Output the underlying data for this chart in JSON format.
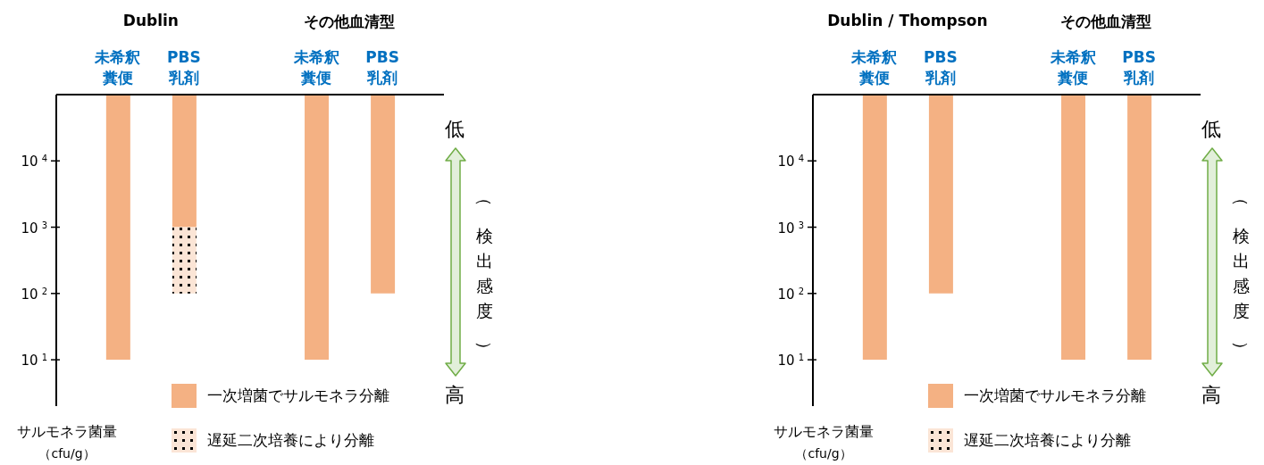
{
  "chart_data": [
    {
      "type": "bar",
      "categories": [
        "未希釈糞便",
        "PBS乳剤",
        "未希釈糞便",
        "PBS乳剤"
      ],
      "ylabel": "サルモネラ菌量（cfu/g）",
      "log": "y",
      "ylim": [
        2,
        100000
      ],
      "yticks": [
        {
          "value": 10,
          "label": "10$^{1}$"
        },
        {
          "value": 100,
          "label": "10$^{2}$"
        },
        {
          "value": 1000,
          "label": "10$^{3}$"
        },
        {
          "value": 10000,
          "label": "10$^{4}$"
        }
      ],
      "grid": false,
      "legend": "bottom right",
      "series": [
        {
          "name": "一次増菌でサルモネラ分離",
          "color": "#f4b183",
          "base": [
            10,
            1000,
            10,
            100
          ],
          "values": [
            99990,
            99000,
            99990,
            99900
          ]
        },
        {
          "name": "遅延二次培養により分離",
          "color": "#fbe5d6",
          "base": [
            null,
            100,
            null,
            null
          ],
          "values": [
            null,
            900,
            null,
            null
          ]
        }
      ],
      "annotations": [
        "Dublin",
        "その他血清型",
        "低",
        "高",
        "（検出感度）"
      ]
    },
    {
      "type": "bar",
      "categories": [
        "未希釈糞便",
        "PBS乳剤",
        "未希釈糞便",
        "PBS乳剤"
      ],
      "ylabel": "サルモネラ菌量（cfu/g）",
      "log": "y",
      "ylim": [
        2,
        100000
      ],
      "yticks": [
        {
          "value": 10,
          "label": "10$^{1}$"
        },
        {
          "value": 100,
          "label": "10$^{2}$"
        },
        {
          "value": 1000,
          "label": "10$^{3}$"
        },
        {
          "value": 10000,
          "label": "10$^{4}$"
        }
      ],
      "grid": false,
      "legend": "bottom right",
      "series": [
        {
          "name": "一次増菌でサルモネラ分離",
          "color": "#f4b183",
          "base": [
            10,
            100,
            10,
            10
          ],
          "values": [
            99990,
            99900,
            99990,
            99990
          ]
        },
        {
          "name": "遅延二次培養により分離",
          "color": "#fbe5d6",
          "base": [
            null,
            null,
            null,
            null
          ],
          "values": [
            null,
            null,
            null,
            null
          ]
        }
      ],
      "annotations": [
        "Dublin / Thompson",
        "その他血清型",
        "低",
        "高",
        "（検出感度）"
      ]
    }
  ]
}
